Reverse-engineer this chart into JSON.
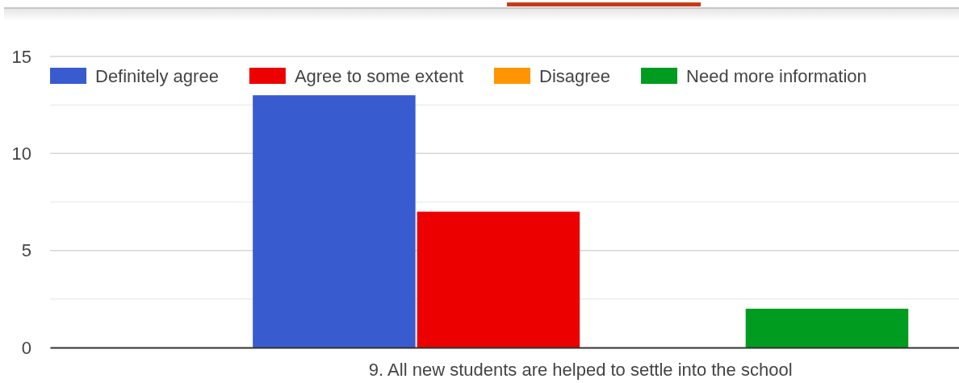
{
  "chart_data": {
    "type": "bar",
    "categories": [
      "9. All new students are helped to settle into the school"
    ],
    "series": [
      {
        "name": "Definitely agree",
        "color": "#385bcf",
        "values": [
          13
        ]
      },
      {
        "name": "Agree to some extent",
        "color": "#ec0000",
        "values": [
          7
        ]
      },
      {
        "name": "Disagree",
        "color": "#ff9500",
        "values": [
          0
        ]
      },
      {
        "name": "Need more information",
        "color": "#009c1f",
        "values": [
          2
        ]
      }
    ],
    "ylim": [
      0,
      15
    ],
    "yticks": [
      0,
      {
        "value": 2.5,
        "label": null
      },
      5,
      {
        "value": 7.5,
        "label": null
      },
      10,
      {
        "value": 12.5,
        "label": null
      },
      15
    ],
    "grid": "y",
    "legend": "top left"
  }
}
